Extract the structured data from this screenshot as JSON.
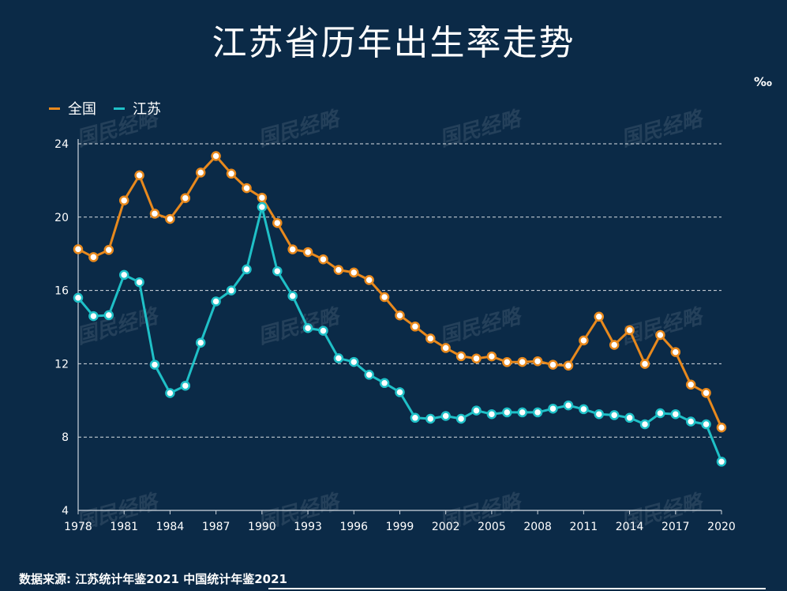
{
  "chart_data": {
    "type": "line",
    "title": "江苏省历年出生率走势",
    "unit": "‰",
    "xlabel": "",
    "ylabel": "",
    "ylim": [
      4,
      24
    ],
    "yticks": [
      4,
      8,
      12,
      16,
      20,
      24
    ],
    "x": [
      1978,
      1979,
      1980,
      1981,
      1982,
      1983,
      1984,
      1985,
      1986,
      1987,
      1988,
      1989,
      1990,
      1991,
      1992,
      1993,
      1994,
      1995,
      1996,
      1997,
      1998,
      1999,
      2000,
      2001,
      2002,
      2003,
      2004,
      2005,
      2006,
      2007,
      2008,
      2009,
      2010,
      2011,
      2012,
      2013,
      2014,
      2015,
      2016,
      2017,
      2018,
      2019,
      2020
    ],
    "xtick_labels": [
      "1978",
      "1981",
      "1984",
      "1987",
      "1990",
      "1993",
      "1996",
      "1999",
      "2002",
      "2005",
      "2008",
      "2011",
      "2014",
      "2017",
      "2020"
    ],
    "series": [
      {
        "name": "全国",
        "color": "#e8891d",
        "values": [
          18.25,
          17.82,
          18.21,
          20.91,
          22.28,
          20.19,
          19.9,
          21.04,
          22.43,
          23.33,
          22.37,
          21.58,
          21.06,
          19.68,
          18.24,
          18.09,
          17.7,
          17.12,
          16.98,
          16.57,
          15.64,
          14.64,
          14.03,
          13.38,
          12.86,
          12.41,
          12.29,
          12.4,
          12.09,
          12.1,
          12.14,
          11.95,
          11.9,
          13.27,
          14.57,
          13.03,
          13.83,
          11.99,
          13.57,
          12.64,
          10.86,
          10.41,
          8.52
        ]
      },
      {
        "name": "江苏",
        "color": "#1fc0c7",
        "values": [
          15.6,
          14.6,
          14.65,
          16.85,
          16.45,
          11.95,
          10.4,
          10.8,
          13.15,
          15.4,
          16.0,
          17.15,
          20.55,
          17.05,
          15.7,
          13.95,
          13.8,
          12.3,
          12.1,
          11.4,
          10.95,
          10.45,
          9.05,
          9.0,
          9.15,
          9.0,
          9.45,
          9.25,
          9.35,
          9.35,
          9.35,
          9.55,
          9.73,
          9.52,
          9.25,
          9.2,
          9.05,
          8.7,
          9.3,
          9.25,
          8.85,
          8.7,
          6.66
        ]
      }
    ],
    "legend_position": "top-left",
    "grid": true
  },
  "watermark": "国民经略",
  "source_note": "数据来源: 江苏统计年鉴2021 中国统计年鉴2021"
}
